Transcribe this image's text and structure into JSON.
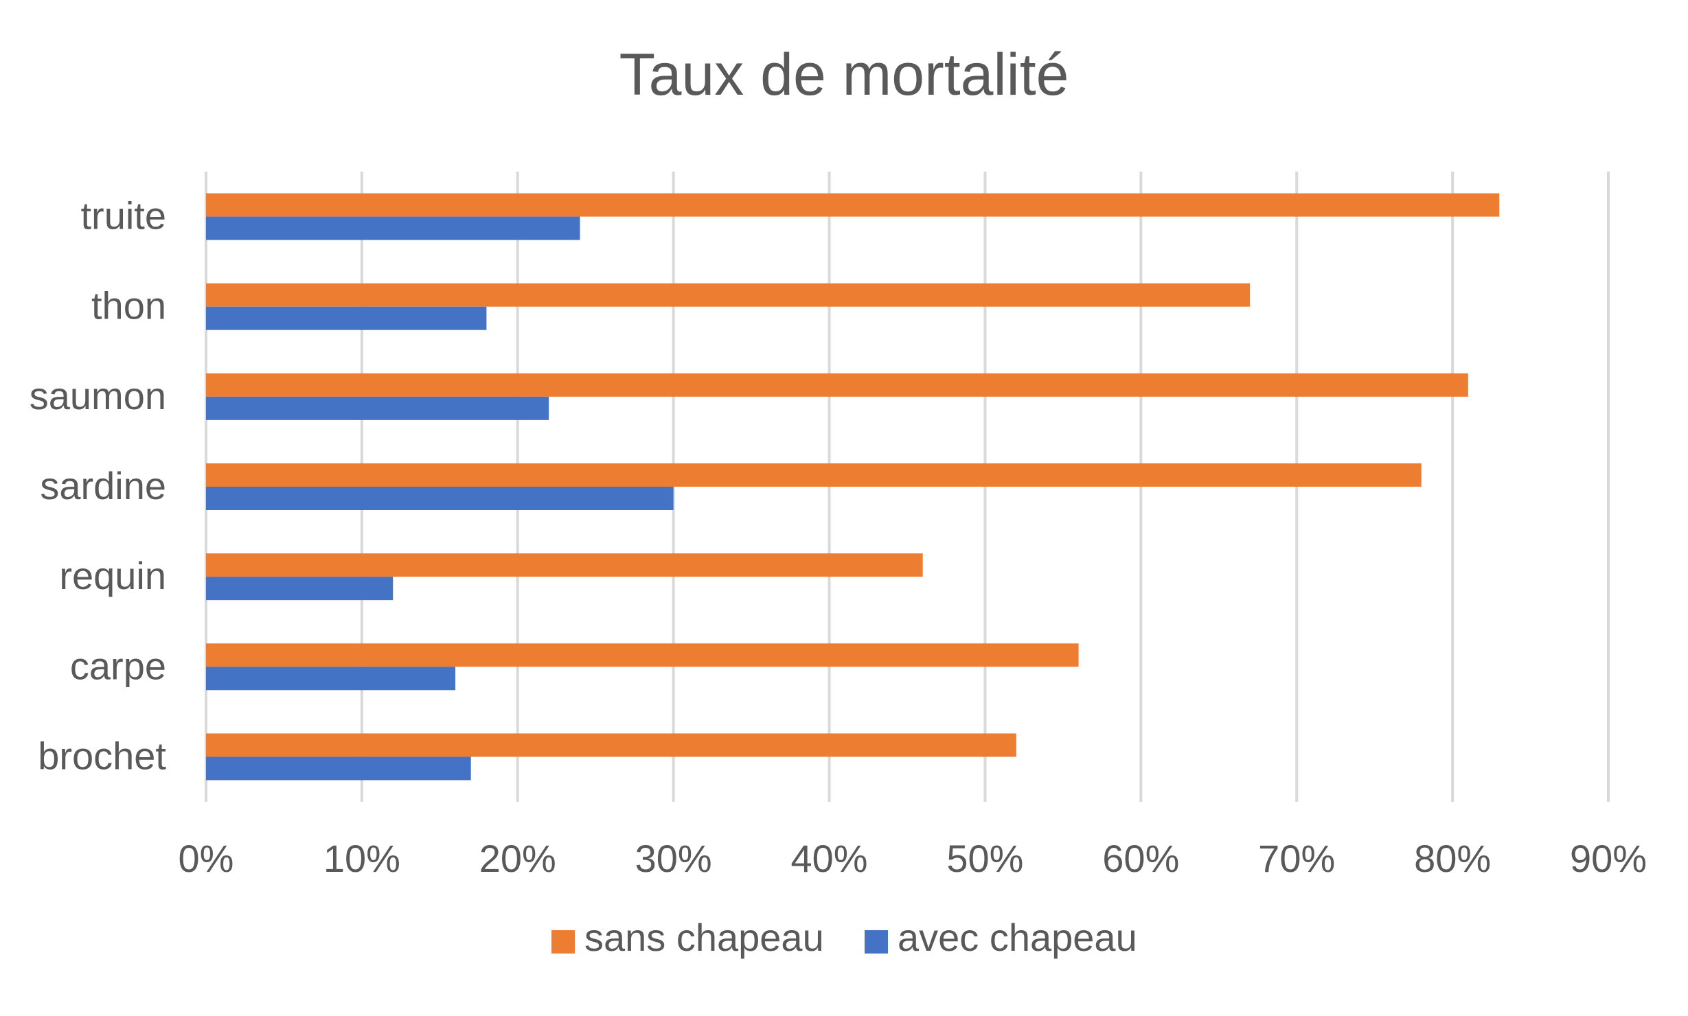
{
  "chart_data": {
    "type": "bar",
    "orientation": "horizontal",
    "title": "Taux de mortalité",
    "xlabel": "",
    "ylabel": "",
    "categories": [
      "truite",
      "thon",
      "saumon",
      "sardine",
      "requin",
      "carpe",
      "brochet"
    ],
    "series": [
      {
        "name": "sans chapeau",
        "color": "#ED7D31",
        "values": [
          0.83,
          0.67,
          0.81,
          0.78,
          0.46,
          0.56,
          0.52
        ]
      },
      {
        "name": "avec chapeau",
        "color": "#4472C4",
        "values": [
          0.24,
          0.18,
          0.22,
          0.3,
          0.12,
          0.16,
          0.17
        ]
      }
    ],
    "xlim": [
      0,
      0.9
    ],
    "x_ticks": [
      "0%",
      "10%",
      "20%",
      "30%",
      "40%",
      "50%",
      "60%",
      "70%",
      "80%",
      "90%"
    ],
    "grid": true,
    "legend_position": "bottom"
  }
}
